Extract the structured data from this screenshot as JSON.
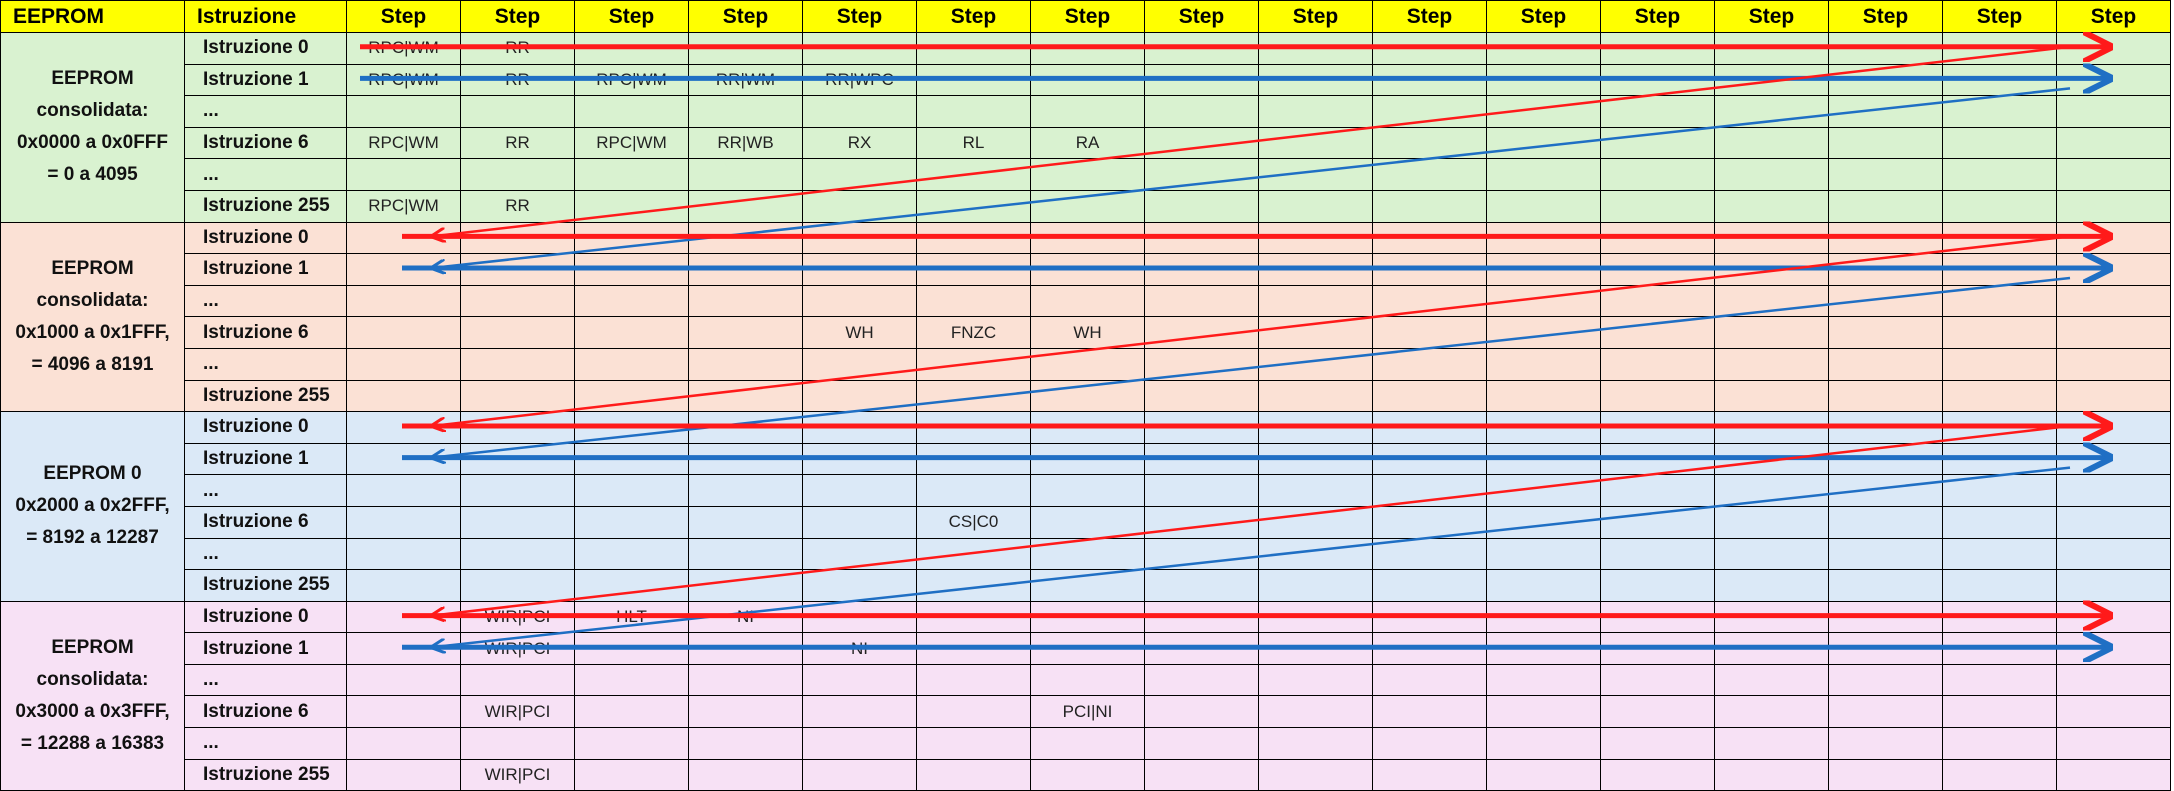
{
  "header": {
    "eeprom_label": "EEPROM",
    "istruzione_label": "Istruzione",
    "step_labels": [
      "Step",
      "Step",
      "Step",
      "Step",
      "Step",
      "Step",
      "Step",
      "Step",
      "Step",
      "Step",
      "Step",
      "Step",
      "Step",
      "Step",
      "Step",
      "Step"
    ]
  },
  "groups": [
    {
      "title": [
        "EEPROM",
        "consolidata:",
        "0x0000 a 0x0FFF",
        "= 0 a 4095"
      ],
      "rows": [
        {
          "label": "Istruzione 0",
          "cells": [
            "RPC|WM",
            "RR",
            "",
            "",
            "",
            "",
            "",
            "",
            "",
            "",
            "",
            "",
            "",
            "",
            "",
            ""
          ]
        },
        {
          "label": "Istruzione 1",
          "cells": [
            "RPC|WM",
            "RR",
            "RPC|WM",
            "RR|WM",
            "RR|WPC",
            "",
            "",
            "",
            "",
            "",
            "",
            "",
            "",
            "",
            "",
            ""
          ]
        },
        {
          "label": "...",
          "cells": [
            "",
            "",
            "",
            "",
            "",
            "",
            "",
            "",
            "",
            "",
            "",
            "",
            "",
            "",
            "",
            ""
          ]
        },
        {
          "label": "Istruzione 6",
          "cells": [
            "RPC|WM",
            "RR",
            "RPC|WM",
            "RR|WB",
            "RX",
            "RL",
            "RA",
            "",
            "",
            "",
            "",
            "",
            "",
            "",
            "",
            ""
          ]
        },
        {
          "label": "...",
          "cells": [
            "",
            "",
            "",
            "",
            "",
            "",
            "",
            "",
            "",
            "",
            "",
            "",
            "",
            "",
            "",
            ""
          ]
        },
        {
          "label": "Istruzione 255",
          "cells": [
            "RPC|WM",
            "RR",
            "",
            "",
            "",
            "",
            "",
            "",
            "",
            "",
            "",
            "",
            "",
            "",
            "",
            ""
          ]
        }
      ]
    },
    {
      "title": [
        "EEPROM",
        "consolidata:",
        "0x1000 a 0x1FFF,",
        "= 4096 a 8191"
      ],
      "rows": [
        {
          "label": "Istruzione 0",
          "cells": [
            "",
            "",
            "",
            "",
            "",
            "",
            "",
            "",
            "",
            "",
            "",
            "",
            "",
            "",
            "",
            ""
          ]
        },
        {
          "label": "Istruzione 1",
          "cells": [
            "",
            "",
            "",
            "",
            "",
            "",
            "",
            "",
            "",
            "",
            "",
            "",
            "",
            "",
            "",
            ""
          ]
        },
        {
          "label": "...",
          "cells": [
            "",
            "",
            "",
            "",
            "",
            "",
            "",
            "",
            "",
            "",
            "",
            "",
            "",
            "",
            "",
            ""
          ]
        },
        {
          "label": "Istruzione 6",
          "cells": [
            "",
            "",
            "",
            "",
            "WH",
            "FNZC",
            "WH",
            "",
            "",
            "",
            "",
            "",
            "",
            "",
            "",
            ""
          ]
        },
        {
          "label": "...",
          "cells": [
            "",
            "",
            "",
            "",
            "",
            "",
            "",
            "",
            "",
            "",
            "",
            "",
            "",
            "",
            "",
            ""
          ]
        },
        {
          "label": "Istruzione 255",
          "cells": [
            "",
            "",
            "",
            "",
            "",
            "",
            "",
            "",
            "",
            "",
            "",
            "",
            "",
            "",
            "",
            ""
          ]
        }
      ]
    },
    {
      "title": [
        "EEPROM 0",
        "0x2000 a 0x2FFF,",
        "= 8192 a 12287"
      ],
      "rows": [
        {
          "label": "Istruzione 0",
          "cells": [
            "",
            "",
            "",
            "",
            "",
            "",
            "",
            "",
            "",
            "",
            "",
            "",
            "",
            "",
            "",
            ""
          ]
        },
        {
          "label": "Istruzione 1",
          "cells": [
            "",
            "",
            "",
            "",
            "",
            "",
            "",
            "",
            "",
            "",
            "",
            "",
            "",
            "",
            "",
            ""
          ]
        },
        {
          "label": "...",
          "cells": [
            "",
            "",
            "",
            "",
            "",
            "",
            "",
            "",
            "",
            "",
            "",
            "",
            "",
            "",
            "",
            ""
          ]
        },
        {
          "label": "Istruzione 6",
          "cells": [
            "",
            "",
            "",
            "",
            "",
            "CS|C0",
            "",
            "",
            "",
            "",
            "",
            "",
            "",
            "",
            "",
            ""
          ]
        },
        {
          "label": "...",
          "cells": [
            "",
            "",
            "",
            "",
            "",
            "",
            "",
            "",
            "",
            "",
            "",
            "",
            "",
            "",
            "",
            ""
          ]
        },
        {
          "label": "Istruzione 255",
          "cells": [
            "",
            "",
            "",
            "",
            "",
            "",
            "",
            "",
            "",
            "",
            "",
            "",
            "",
            "",
            "",
            ""
          ]
        }
      ]
    },
    {
      "title": [
        "EEPROM",
        "consolidata:",
        "0x3000 a 0x3FFF,",
        "= 12288 a 16383"
      ],
      "rows": [
        {
          "label": "Istruzione 0",
          "cells": [
            "",
            "WIR|PCI",
            "HLT",
            "NI",
            "",
            "",
            "",
            "",
            "",
            "",
            "",
            "",
            "",
            "",
            "",
            ""
          ]
        },
        {
          "label": "Istruzione 1",
          "cells": [
            "",
            "WIR|PCI",
            "",
            "",
            "NI",
            "",
            "",
            "",
            "",
            "",
            "",
            "",
            "",
            "",
            "",
            ""
          ]
        },
        {
          "label": "...",
          "cells": [
            "",
            "",
            "",
            "",
            "",
            "",
            "",
            "",
            "",
            "",
            "",
            "",
            "",
            "",
            "",
            ""
          ]
        },
        {
          "label": "Istruzione 6",
          "cells": [
            "",
            "WIR|PCI",
            "",
            "",
            "",
            "",
            "PCI|NI",
            "",
            "",
            "",
            "",
            "",
            "",
            "",
            "",
            ""
          ]
        },
        {
          "label": "...",
          "cells": [
            "",
            "",
            "",
            "",
            "",
            "",
            "",
            "",
            "",
            "",
            "",
            "",
            "",
            "",
            "",
            ""
          ]
        },
        {
          "label": "Istruzione 255",
          "cells": [
            "",
            "WIR|PCI",
            "",
            "",
            "",
            "",
            "",
            "",
            "",
            "",
            "",
            "",
            "",
            "",
            "",
            ""
          ]
        }
      ]
    }
  ],
  "colors": {
    "header_bg": "#ffff00",
    "group_label_bg": "#d9f2d0",
    "group_bg": [
      "#d9f2d0",
      "#fbe1d5",
      "#dbe9f7",
      "#f7e1f5"
    ],
    "arrow_red": "#ff1a1a",
    "arrow_blue": "#1f6fc4"
  }
}
